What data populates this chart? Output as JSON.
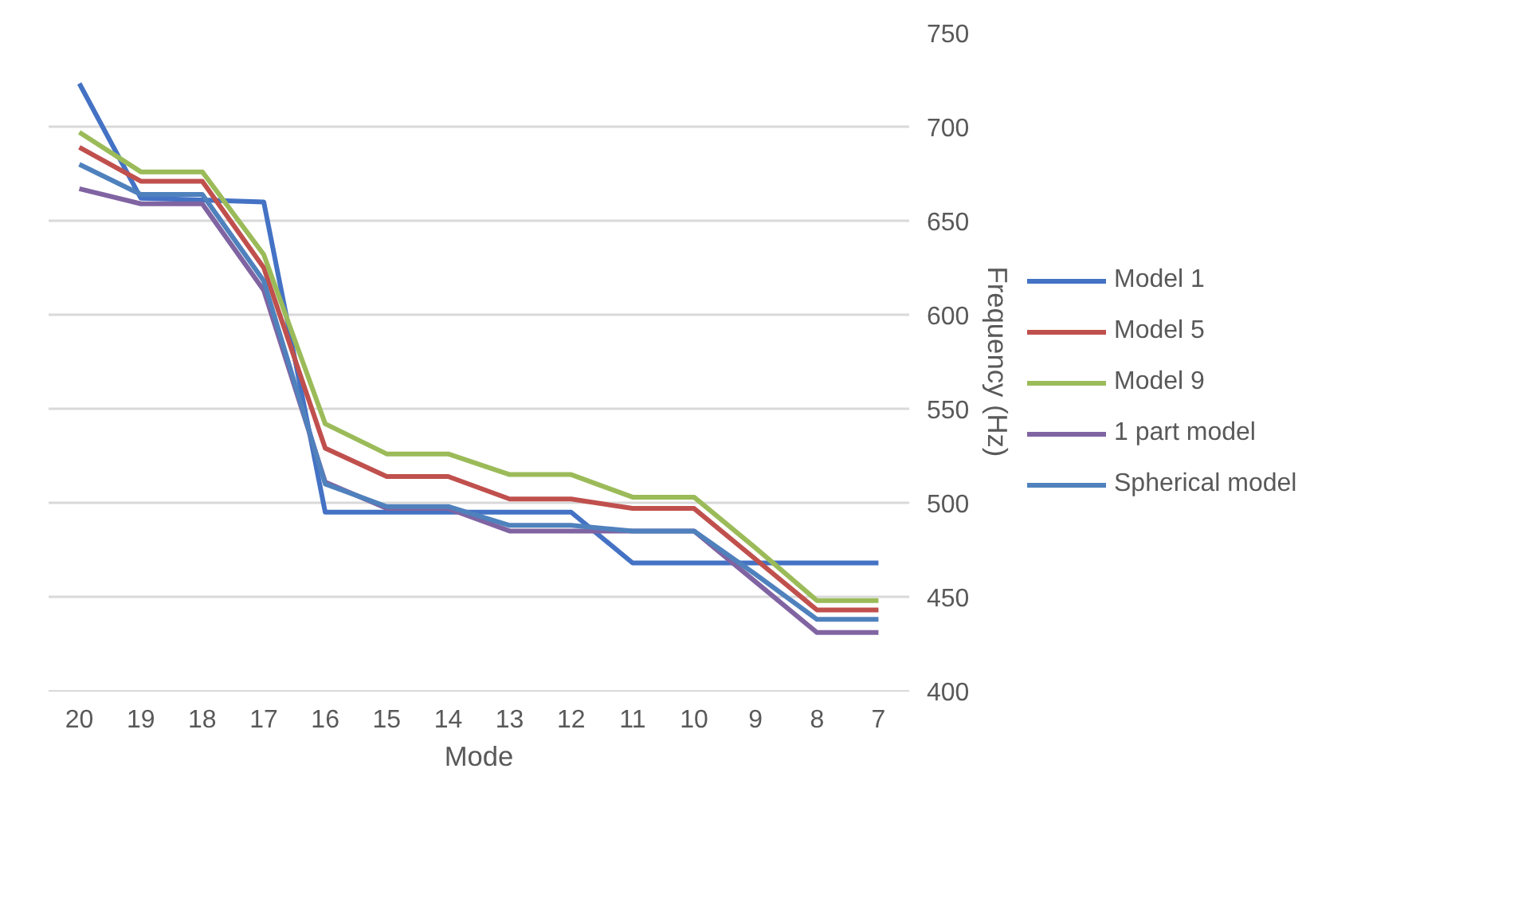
{
  "chart_data": {
    "type": "line",
    "xlabel": "Mode",
    "ylabel": "Frequency (Hz)",
    "categories": [
      "20",
      "19",
      "18",
      "17",
      "16",
      "15",
      "14",
      "13",
      "12",
      "11",
      "10",
      "9",
      "8",
      "7"
    ],
    "series": [
      {
        "name": "Model 1",
        "color": "#4472c4",
        "values": [
          723,
          662,
          661,
          660,
          495,
          495,
          495,
          495,
          495,
          468,
          468,
          468,
          468,
          468
        ]
      },
      {
        "name": "Model 5",
        "color": "#c0504d",
        "values": [
          689,
          671,
          671,
          625,
          529,
          514,
          514,
          502,
          502,
          497,
          497,
          470,
          443,
          443
        ]
      },
      {
        "name": "Model 9",
        "color": "#9bbb59",
        "values": [
          697,
          676,
          676,
          632,
          542,
          526,
          526,
          515,
          515,
          503,
          503,
          476,
          448,
          448
        ]
      },
      {
        "name": "1 part model",
        "color": "#8064a2",
        "values": [
          667,
          659,
          659,
          613,
          511,
          497,
          497,
          485,
          485,
          485,
          485,
          458,
          431,
          431
        ]
      },
      {
        "name": "Spherical model",
        "color": "#4f81bd",
        "values": [
          680,
          664,
          664,
          618,
          510,
          498,
          498,
          488,
          488,
          485,
          485,
          462,
          438,
          438
        ]
      }
    ],
    "ylim": [
      400,
      750
    ],
    "yticks": [
      400,
      450,
      500,
      550,
      600,
      650,
      700,
      750
    ],
    "grid": "y",
    "legend": "right",
    "marker": "none",
    "line_style": "solid"
  }
}
